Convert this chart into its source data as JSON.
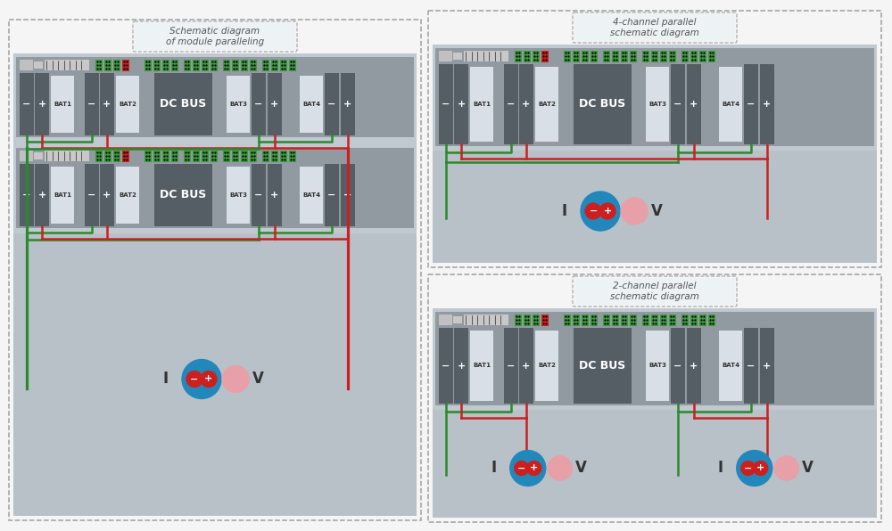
{
  "bg_color": "#f5f5f5",
  "outer_bg": "#ffffff",
  "panel_bg": "#c0c8d0",
  "strip_bg": "#909aa0",
  "bottom_area_bg": "#b8c0c8",
  "dark_box": "#555d65",
  "bat_label_bg": "#d8dfe6",
  "green_conn": "#3d9a3d",
  "red_conn": "#cc2020",
  "green_wire": "#2a8a2a",
  "red_wire": "#cc2020",
  "blue_circle": "#2288bb",
  "pink_circle": "#e8a0a8",
  "dash_color": "#a0a0a0",
  "title_bg": "#edf2f5",
  "title_text": "#555555",
  "white": "#ffffff",
  "lw_wire": 1.8,
  "lw_dash": 1.0,
  "titles": {
    "left": "Schematic diagram\nof module paralleling",
    "top_right": "4-channel parallel\nschematic diagram",
    "bot_right": "2-channel parallel\nschematic diagram"
  }
}
